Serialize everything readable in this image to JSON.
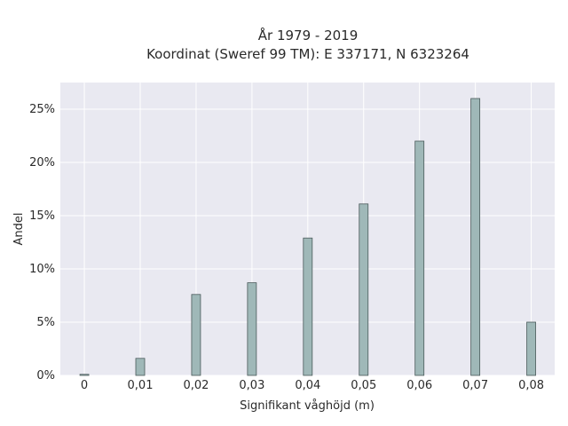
{
  "chart_data": {
    "type": "bar",
    "title_line1": "År 1979 - 2019",
    "title_line2": "Koordinat (Sweref 99 TM): E 337171, N 6323264",
    "xlabel": "Signifikant våghöjd (m)",
    "ylabel": "Andel",
    "x": [
      0,
      0.01,
      0.02,
      0.03,
      0.04,
      0.05,
      0.06,
      0.07,
      0.08
    ],
    "x_tick_labels": [
      "0",
      "0,01",
      "0,02",
      "0,03",
      "0,04",
      "0,05",
      "0,06",
      "0,07",
      "0,08"
    ],
    "values": [
      0.1,
      1.6,
      7.6,
      8.7,
      12.9,
      16.1,
      22.0,
      26.0,
      5.0
    ],
    "y_ticks": [
      0,
      5,
      10,
      15,
      20,
      25
    ],
    "y_tick_labels": [
      "0%",
      "5%",
      "10%",
      "15%",
      "20%",
      "25%"
    ],
    "xlim": [
      -0.0043,
      0.0842
    ],
    "ylim": [
      0,
      27.5
    ],
    "grid": true,
    "colors": {
      "plot_background": "#e9e9f1",
      "bar_fill": "#9fb8b8",
      "bar_edge": "#4a5a5a",
      "grid": "#ffffff"
    }
  }
}
